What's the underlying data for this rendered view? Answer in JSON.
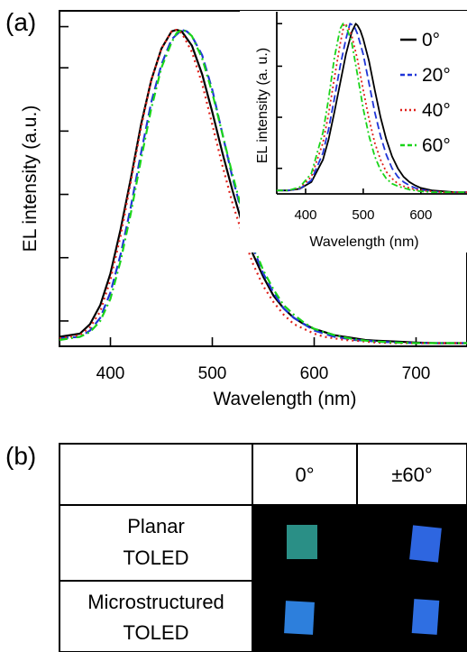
{
  "panel_a_label": "(a)",
  "panel_b_label": "(b)",
  "chart_data": [
    {
      "type": "line",
      "xlabel": "Wavelength (nm)",
      "ylabel": "EL intensity (a.u.)",
      "xlim": [
        350,
        750
      ],
      "ylim": [
        0,
        1.06
      ],
      "xticks": [
        400,
        500,
        600,
        700
      ],
      "series": [
        {
          "name": "0°",
          "color": "#000000",
          "dash": "solid",
          "x": [
            350,
            370,
            380,
            390,
            400,
            410,
            420,
            430,
            440,
            450,
            460,
            465,
            470,
            480,
            490,
            500,
            510,
            520,
            530,
            540,
            550,
            560,
            570,
            580,
            590,
            600,
            610,
            620,
            630,
            640,
            650,
            660,
            680,
            700,
            720,
            750
          ],
          "y": [
            0.03,
            0.04,
            0.07,
            0.13,
            0.23,
            0.37,
            0.53,
            0.7,
            0.84,
            0.94,
            0.995,
            1.0,
            0.995,
            0.95,
            0.86,
            0.74,
            0.61,
            0.49,
            0.38,
            0.29,
            0.22,
            0.16,
            0.12,
            0.09,
            0.07,
            0.055,
            0.045,
            0.035,
            0.03,
            0.025,
            0.02,
            0.018,
            0.015,
            0.012,
            0.01,
            0.01
          ]
        },
        {
          "name": "20°",
          "color": "#1f35d8",
          "dash": "10,5",
          "x": [
            350,
            370,
            380,
            390,
            400,
            410,
            420,
            430,
            440,
            450,
            460,
            470,
            475,
            480,
            490,
            500,
            510,
            520,
            530,
            540,
            550,
            560,
            570,
            580,
            590,
            600,
            610,
            620,
            630,
            640,
            650,
            660,
            680,
            700,
            720,
            750
          ],
          "y": [
            0.025,
            0.03,
            0.05,
            0.09,
            0.17,
            0.29,
            0.44,
            0.61,
            0.77,
            0.89,
            0.97,
            1.0,
            0.995,
            0.98,
            0.92,
            0.81,
            0.67,
            0.53,
            0.41,
            0.31,
            0.23,
            0.17,
            0.12,
            0.09,
            0.07,
            0.05,
            0.04,
            0.03,
            0.025,
            0.02,
            0.018,
            0.015,
            0.012,
            0.01,
            0.01,
            0.01
          ]
        },
        {
          "name": "40°",
          "color": "#e0201a",
          "dash": "2,4",
          "x": [
            350,
            370,
            380,
            390,
            400,
            410,
            420,
            430,
            440,
            450,
            460,
            465,
            470,
            480,
            490,
            500,
            510,
            520,
            530,
            540,
            550,
            560,
            570,
            580,
            590,
            600,
            610,
            620,
            630,
            640,
            650,
            660,
            680,
            700,
            720,
            750
          ],
          "y": [
            0.025,
            0.035,
            0.06,
            0.11,
            0.21,
            0.35,
            0.52,
            0.69,
            0.84,
            0.94,
            0.995,
            1.0,
            0.99,
            0.93,
            0.83,
            0.7,
            0.57,
            0.45,
            0.35,
            0.26,
            0.19,
            0.14,
            0.1,
            0.07,
            0.055,
            0.04,
            0.03,
            0.025,
            0.02,
            0.018,
            0.015,
            0.012,
            0.01,
            0.01,
            0.01,
            0.01
          ]
        },
        {
          "name": "60°",
          "color": "#19d419",
          "dash": "9,4,2,4",
          "x": [
            350,
            370,
            380,
            390,
            400,
            410,
            420,
            430,
            440,
            450,
            460,
            465,
            470,
            475,
            480,
            490,
            500,
            510,
            520,
            530,
            540,
            550,
            560,
            570,
            580,
            590,
            600,
            610,
            620,
            630,
            640,
            650,
            660,
            680,
            700,
            720,
            750
          ],
          "y": [
            0.02,
            0.03,
            0.045,
            0.08,
            0.15,
            0.27,
            0.42,
            0.59,
            0.75,
            0.88,
            0.96,
            0.99,
            1.0,
            0.995,
            0.98,
            0.91,
            0.8,
            0.67,
            0.54,
            0.42,
            0.32,
            0.24,
            0.18,
            0.13,
            0.1,
            0.075,
            0.055,
            0.045,
            0.035,
            0.028,
            0.022,
            0.018,
            0.015,
            0.012,
            0.01,
            0.01,
            0.01
          ]
        }
      ]
    },
    {
      "type": "line",
      "xlabel": "Wavelength (nm)",
      "ylabel": "EL intensity (a. u.)",
      "xlim": [
        350,
        680
      ],
      "ylim": [
        0,
        1.07
      ],
      "xticks": [
        400,
        500,
        600
      ],
      "legend": "right",
      "series": [
        {
          "name": "0°",
          "color": "#000000",
          "dash": "solid",
          "x": [
            350,
            370,
            390,
            410,
            430,
            440,
            450,
            460,
            470,
            480,
            487,
            490,
            495,
            500,
            510,
            520,
            530,
            540,
            550,
            560,
            570,
            580,
            590,
            600,
            620,
            640,
            660,
            680
          ],
          "y": [
            0.02,
            0.02,
            0.03,
            0.07,
            0.2,
            0.32,
            0.48,
            0.65,
            0.82,
            0.95,
            1.0,
            0.99,
            0.96,
            0.91,
            0.78,
            0.61,
            0.45,
            0.32,
            0.22,
            0.15,
            0.1,
            0.07,
            0.05,
            0.035,
            0.02,
            0.015,
            0.01,
            0.01
          ]
        },
        {
          "name": "20°",
          "color": "#1f35d8",
          "dash": "8,4",
          "x": [
            350,
            370,
            390,
            410,
            430,
            440,
            450,
            460,
            470,
            477,
            480,
            485,
            490,
            500,
            510,
            520,
            530,
            540,
            550,
            560,
            570,
            580,
            590,
            600,
            620,
            640,
            660,
            680
          ],
          "y": [
            0.02,
            0.02,
            0.03,
            0.08,
            0.24,
            0.38,
            0.56,
            0.75,
            0.91,
            1.0,
            0.995,
            0.98,
            0.94,
            0.82,
            0.65,
            0.48,
            0.34,
            0.23,
            0.15,
            0.1,
            0.07,
            0.05,
            0.035,
            0.025,
            0.015,
            0.01,
            0.01,
            0.01
          ]
        },
        {
          "name": "40°",
          "color": "#e0201a",
          "dash": "2,3",
          "x": [
            350,
            370,
            390,
            410,
            430,
            440,
            450,
            460,
            467,
            470,
            475,
            480,
            490,
            500,
            510,
            520,
            530,
            540,
            550,
            560,
            570,
            580,
            590,
            600,
            620,
            640,
            660,
            680
          ],
          "y": [
            0.02,
            0.02,
            0.035,
            0.1,
            0.3,
            0.47,
            0.68,
            0.88,
            1.0,
            0.995,
            0.97,
            0.93,
            0.79,
            0.61,
            0.44,
            0.3,
            0.2,
            0.13,
            0.09,
            0.06,
            0.045,
            0.035,
            0.025,
            0.02,
            0.015,
            0.01,
            0.01,
            0.01
          ]
        },
        {
          "name": "60°",
          "color": "#19d419",
          "dash": "7,3,2,3",
          "x": [
            350,
            370,
            390,
            410,
            430,
            440,
            450,
            460,
            465,
            470,
            480,
            490,
            500,
            510,
            520,
            530,
            540,
            550,
            560,
            570,
            580,
            590,
            600,
            620,
            640,
            660,
            680
          ],
          "y": [
            0.02,
            0.02,
            0.04,
            0.12,
            0.36,
            0.56,
            0.8,
            0.97,
            1.0,
            0.99,
            0.89,
            0.7,
            0.5,
            0.34,
            0.22,
            0.14,
            0.09,
            0.06,
            0.045,
            0.035,
            0.025,
            0.02,
            0.015,
            0.01,
            0.01,
            0.01,
            0.01
          ]
        }
      ]
    }
  ],
  "table": {
    "header": [
      "",
      "0°",
      "±60°"
    ],
    "rows": [
      {
        "label_lines": [
          "Planar",
          "TOLED"
        ],
        "swatch_colors": [
          "#2a8f86",
          "#2e66e0"
        ]
      },
      {
        "label_lines": [
          "Microstructured",
          "TOLED"
        ],
        "swatch_colors": [
          "#2d7fdc",
          "#2f6fe2"
        ]
      }
    ]
  }
}
